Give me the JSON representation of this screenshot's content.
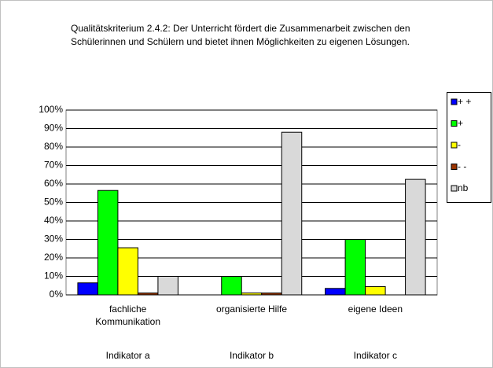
{
  "chart_data": {
    "type": "bar",
    "title": "Qualitätskriterium 2.4.2: Der Unterricht fördert die Zusammenarbeit zwischen den Schülerinnen und Schülern und bietet ihnen Möglichkeiten zu eigenen Lösungen.",
    "categories": [
      "fachliche Kommunikation",
      "organisierte Hilfe",
      "eigene Ideen"
    ],
    "indicators": [
      "Indikator a",
      "Indikator b",
      "Indikator c"
    ],
    "series": [
      {
        "name": "+ +",
        "color": "#0000ff",
        "values": [
          6.5,
          0,
          3.5
        ]
      },
      {
        "name": "+",
        "color": "#00ff00",
        "values": [
          56.5,
          10,
          30
        ]
      },
      {
        "name": "-",
        "color": "#ffff00",
        "values": [
          25.5,
          1,
          4.5
        ]
      },
      {
        "name": "- -",
        "color": "#993300",
        "values": [
          1,
          1,
          0
        ]
      },
      {
        "name": "nb",
        "color": "#d9d9d9",
        "values": [
          10,
          88,
          62.5
        ]
      }
    ],
    "ylim": [
      0,
      100
    ],
    "yticks": [
      {
        "value": 0,
        "label": "0%"
      },
      {
        "value": 10,
        "label": "10%"
      },
      {
        "value": 20,
        "label": "20%"
      },
      {
        "value": 30,
        "label": "30%"
      },
      {
        "value": 40,
        "label": "40%"
      },
      {
        "value": 50,
        "label": "50%"
      },
      {
        "value": 60,
        "label": "60%"
      },
      {
        "value": 70,
        "label": "70%"
      },
      {
        "value": 80,
        "label": "80%"
      },
      {
        "value": 90,
        "label": "90%"
      },
      {
        "value": 100,
        "label": "100%"
      }
    ],
    "grid": true,
    "legend": "right"
  }
}
